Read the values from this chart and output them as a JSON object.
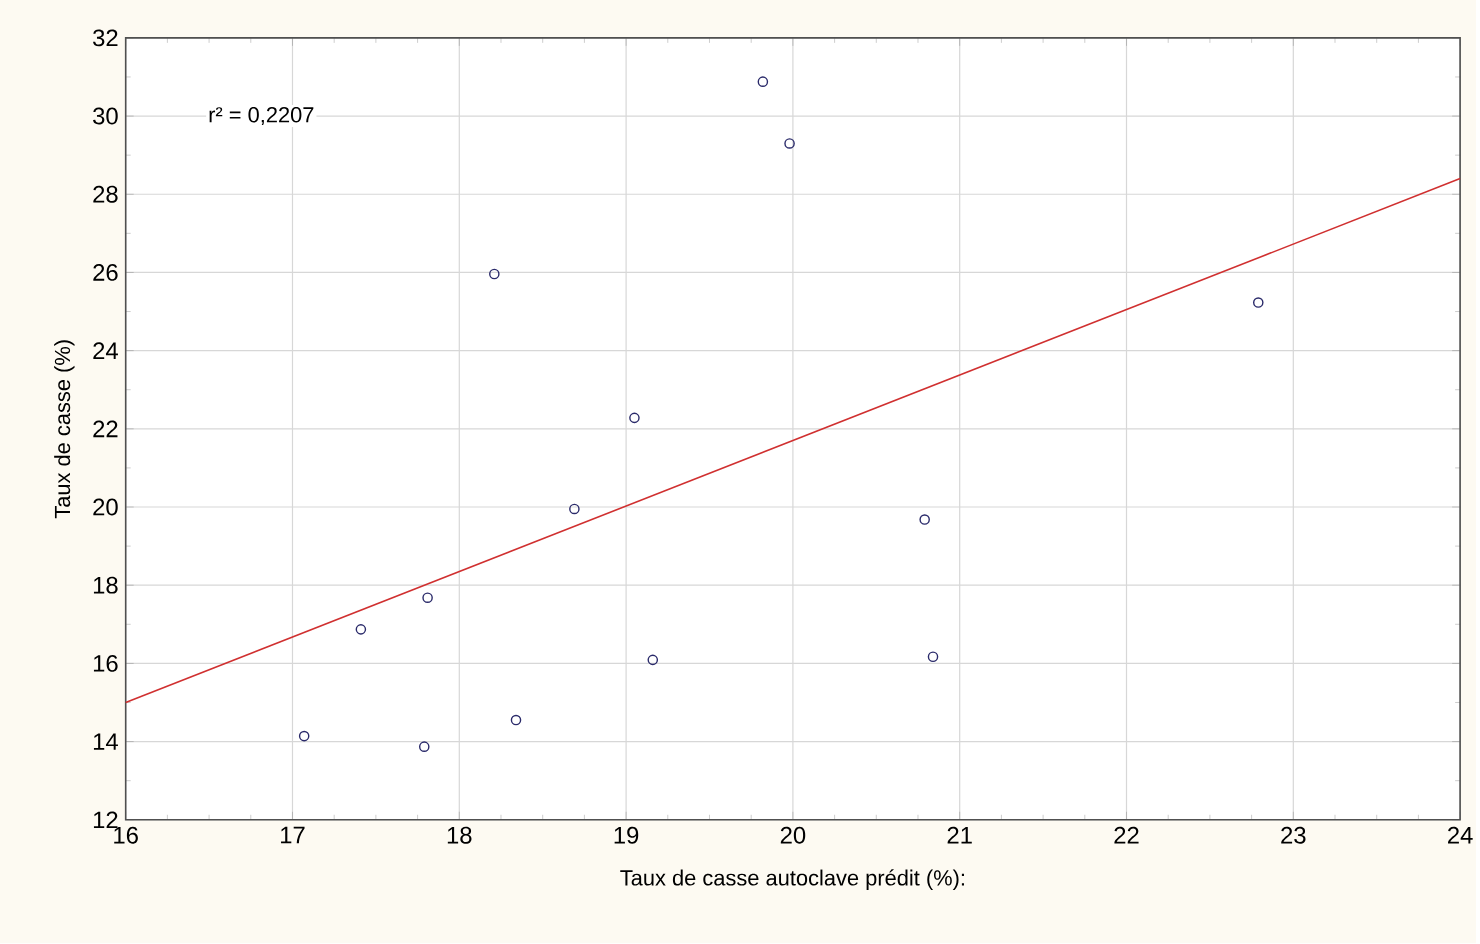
{
  "chart_data": {
    "type": "scatter",
    "xlabel": "Taux de casse autoclave prédit (%):",
    "ylabel": "Taux de casse (%)",
    "xlim": [
      16,
      24
    ],
    "ylim": [
      12,
      32
    ],
    "xticks": [
      16,
      17,
      18,
      19,
      20,
      21,
      22,
      23,
      24
    ],
    "yticks": [
      12,
      14,
      16,
      18,
      20,
      22,
      24,
      26,
      28,
      30,
      32
    ],
    "grid": true,
    "annotations": [
      "r² = 0,2207"
    ],
    "series": [
      {
        "color": "#2a2a6a",
        "marker": "circle",
        "x": [
          17.07,
          17.41,
          17.81,
          17.79,
          18.21,
          18.34,
          18.69,
          19.05,
          19.16,
          19.82,
          19.98,
          20.79,
          20.84,
          22.79
        ],
        "values": [
          14.14,
          16.87,
          17.68,
          13.87,
          25.96,
          14.55,
          19.95,
          22.28,
          16.09,
          30.88,
          29.3,
          19.68,
          16.17,
          25.23
        ]
      },
      {
        "type": "line",
        "color": "#d03030",
        "marker": "none",
        "line_style": "solid",
        "x": [
          16,
          24
        ],
        "values": [
          15.0,
          28.4
        ]
      }
    ]
  }
}
